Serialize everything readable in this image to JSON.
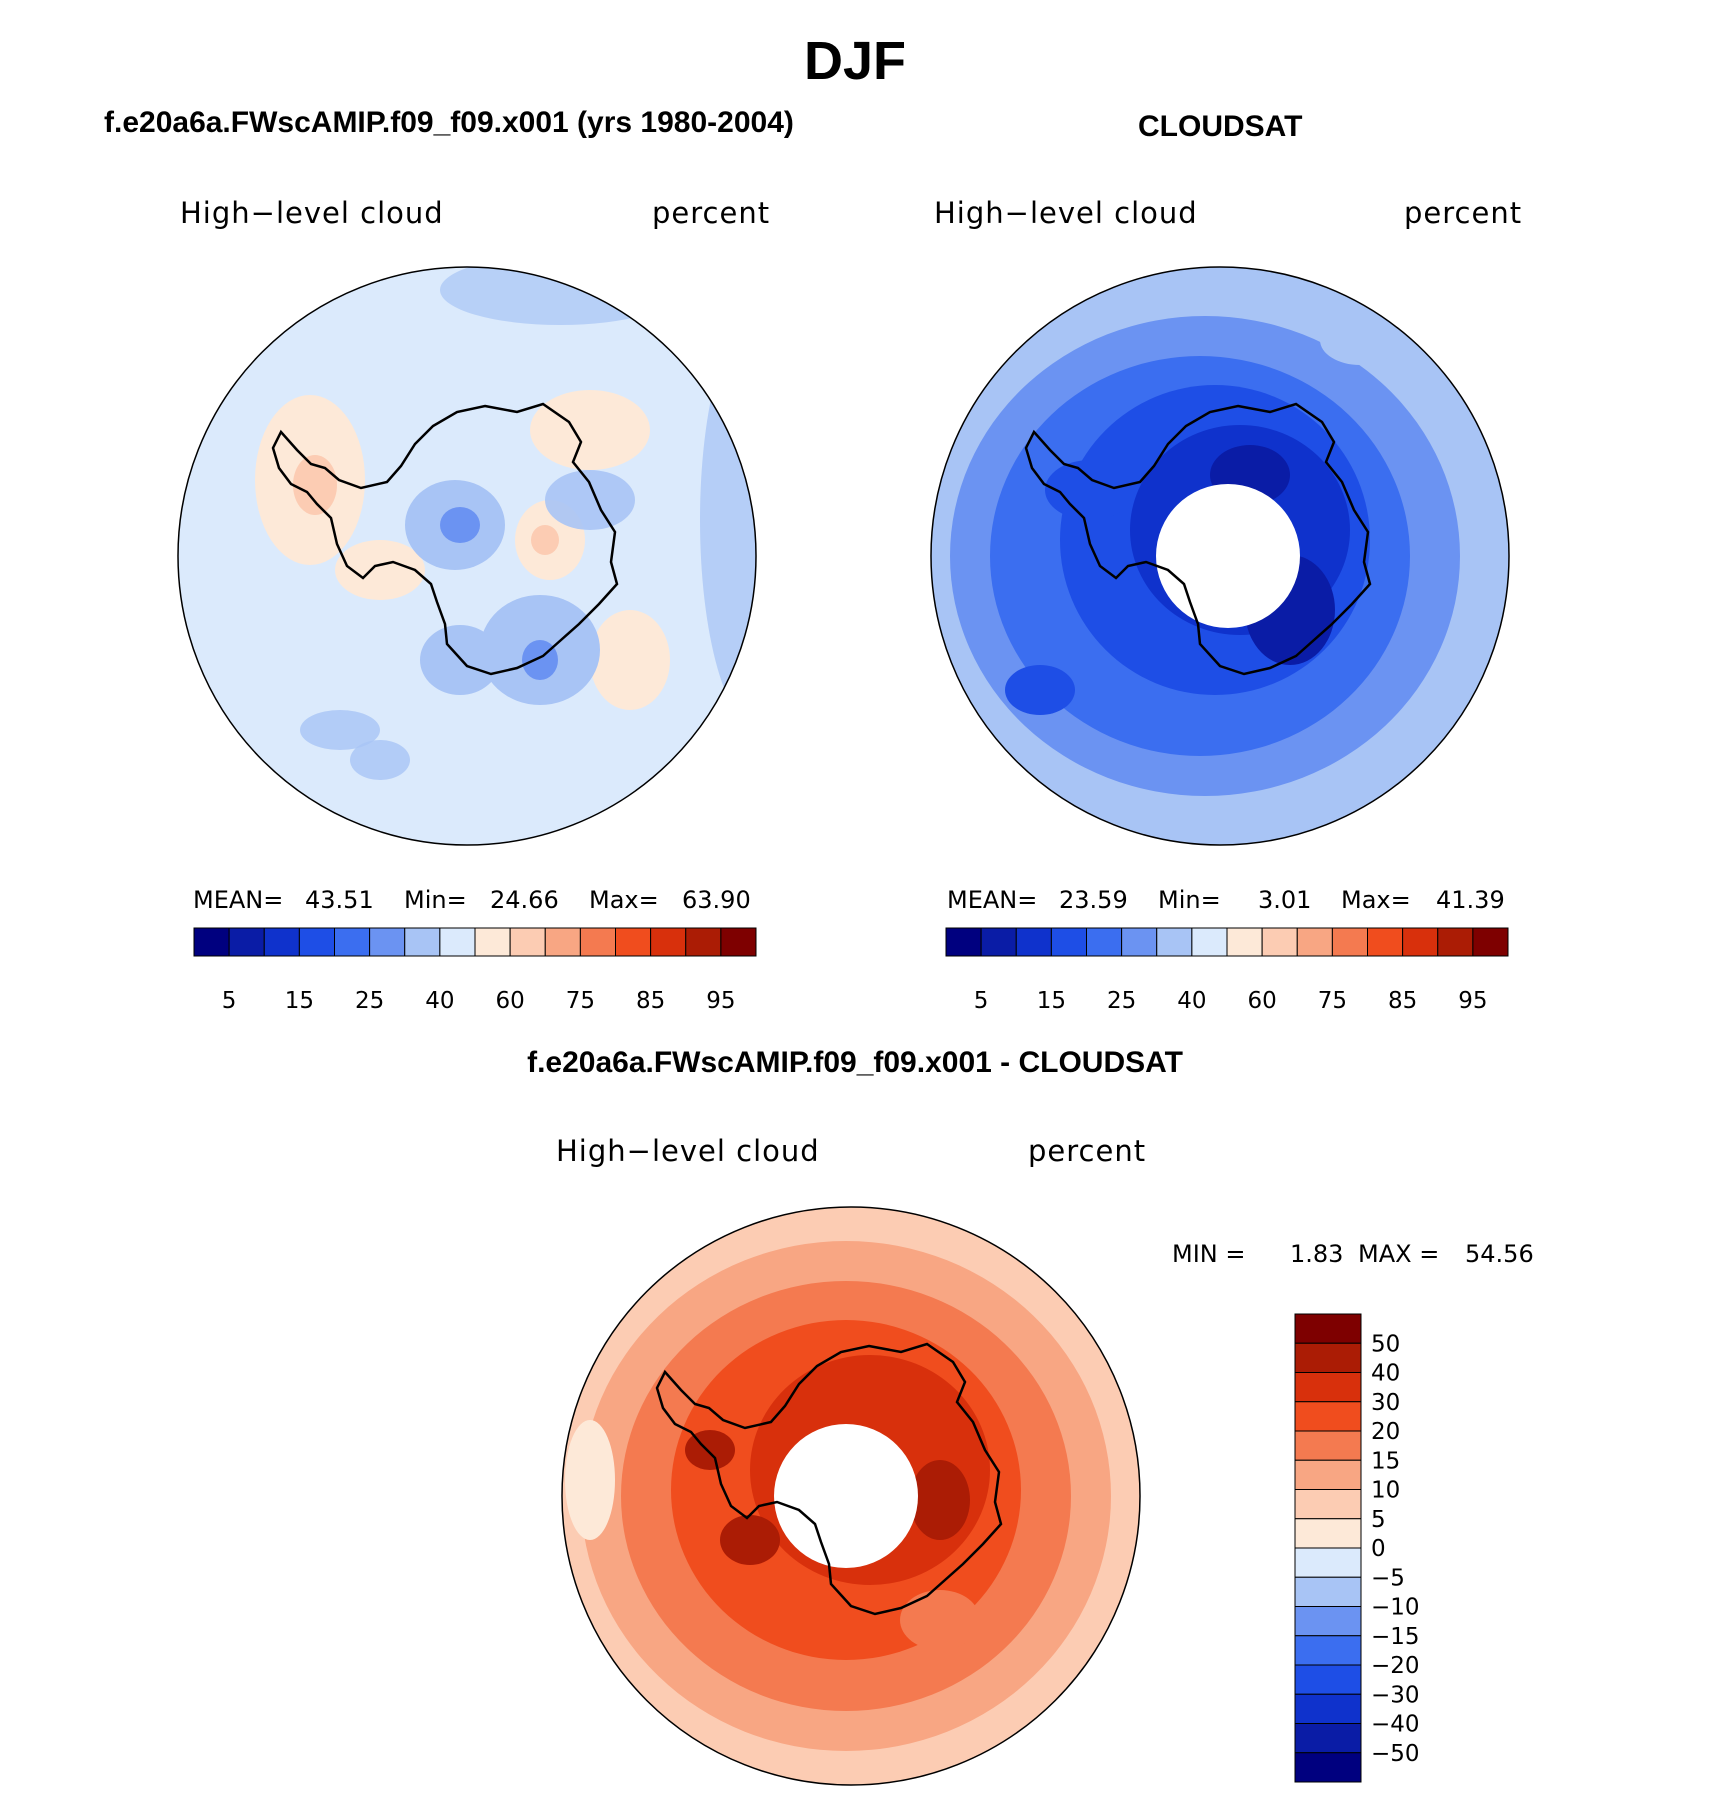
{
  "title": "DJF",
  "panels": [
    {
      "id": "model",
      "title": "f.e20a6a.FWscAMIP.f09_f09.x001 (yrs 1980-2004)",
      "variable": "High−level cloud",
      "units": "percent",
      "stats": {
        "mean_label": "MEAN=",
        "mean": "43.51",
        "min_label": "Min=",
        "min": "24.66",
        "max_label": "Max=",
        "max": "63.90"
      }
    },
    {
      "id": "cloudsat",
      "title": "CLOUDSAT",
      "variable": "High−level cloud",
      "units": "percent",
      "stats": {
        "mean_label": "MEAN=",
        "mean": "23.59",
        "min_label": "Min=",
        "min": "3.01",
        "max_label": "Max=",
        "max": "41.39"
      }
    },
    {
      "id": "difference",
      "title": "f.e20a6a.FWscAMIP.f09_f09.x001 - CLOUDSAT",
      "variable": "High−level cloud",
      "units": "percent",
      "stats": {
        "min_label": "MIN =",
        "min": "1.83",
        "max_label": "MAX =",
        "max": "54.56"
      }
    }
  ],
  "colorbars": {
    "absolute": {
      "colors": [
        "#00007f",
        "#0a1ca6",
        "#0f32cc",
        "#1e4ee6",
        "#3b6ef0",
        "#6b93f2",
        "#a8c4f5",
        "#dbeafc",
        "#fde9d8",
        "#fcccb3",
        "#f8a683",
        "#f47a50",
        "#f04d1e",
        "#d8300c",
        "#ab1c05",
        "#7e0000"
      ],
      "tick_labels": [
        "5",
        "15",
        "25",
        "40",
        "60",
        "75",
        "85",
        "95"
      ]
    },
    "difference": {
      "colors": [
        "#00007f",
        "#0a1ca6",
        "#0f32cc",
        "#1e4ee6",
        "#3b6ef0",
        "#6b93f2",
        "#a8c4f5",
        "#dbeafc",
        "#fde9d8",
        "#fcccb3",
        "#f8a683",
        "#f47a50",
        "#f04d1e",
        "#d8300c",
        "#ab1c05",
        "#7e0000"
      ],
      "tick_labels": [
        "50",
        "40",
        "30",
        "20",
        "15",
        "10",
        "5",
        "0",
        "−5",
        "−10",
        "−15",
        "−20",
        "−30",
        "−40",
        "−50"
      ]
    }
  }
}
